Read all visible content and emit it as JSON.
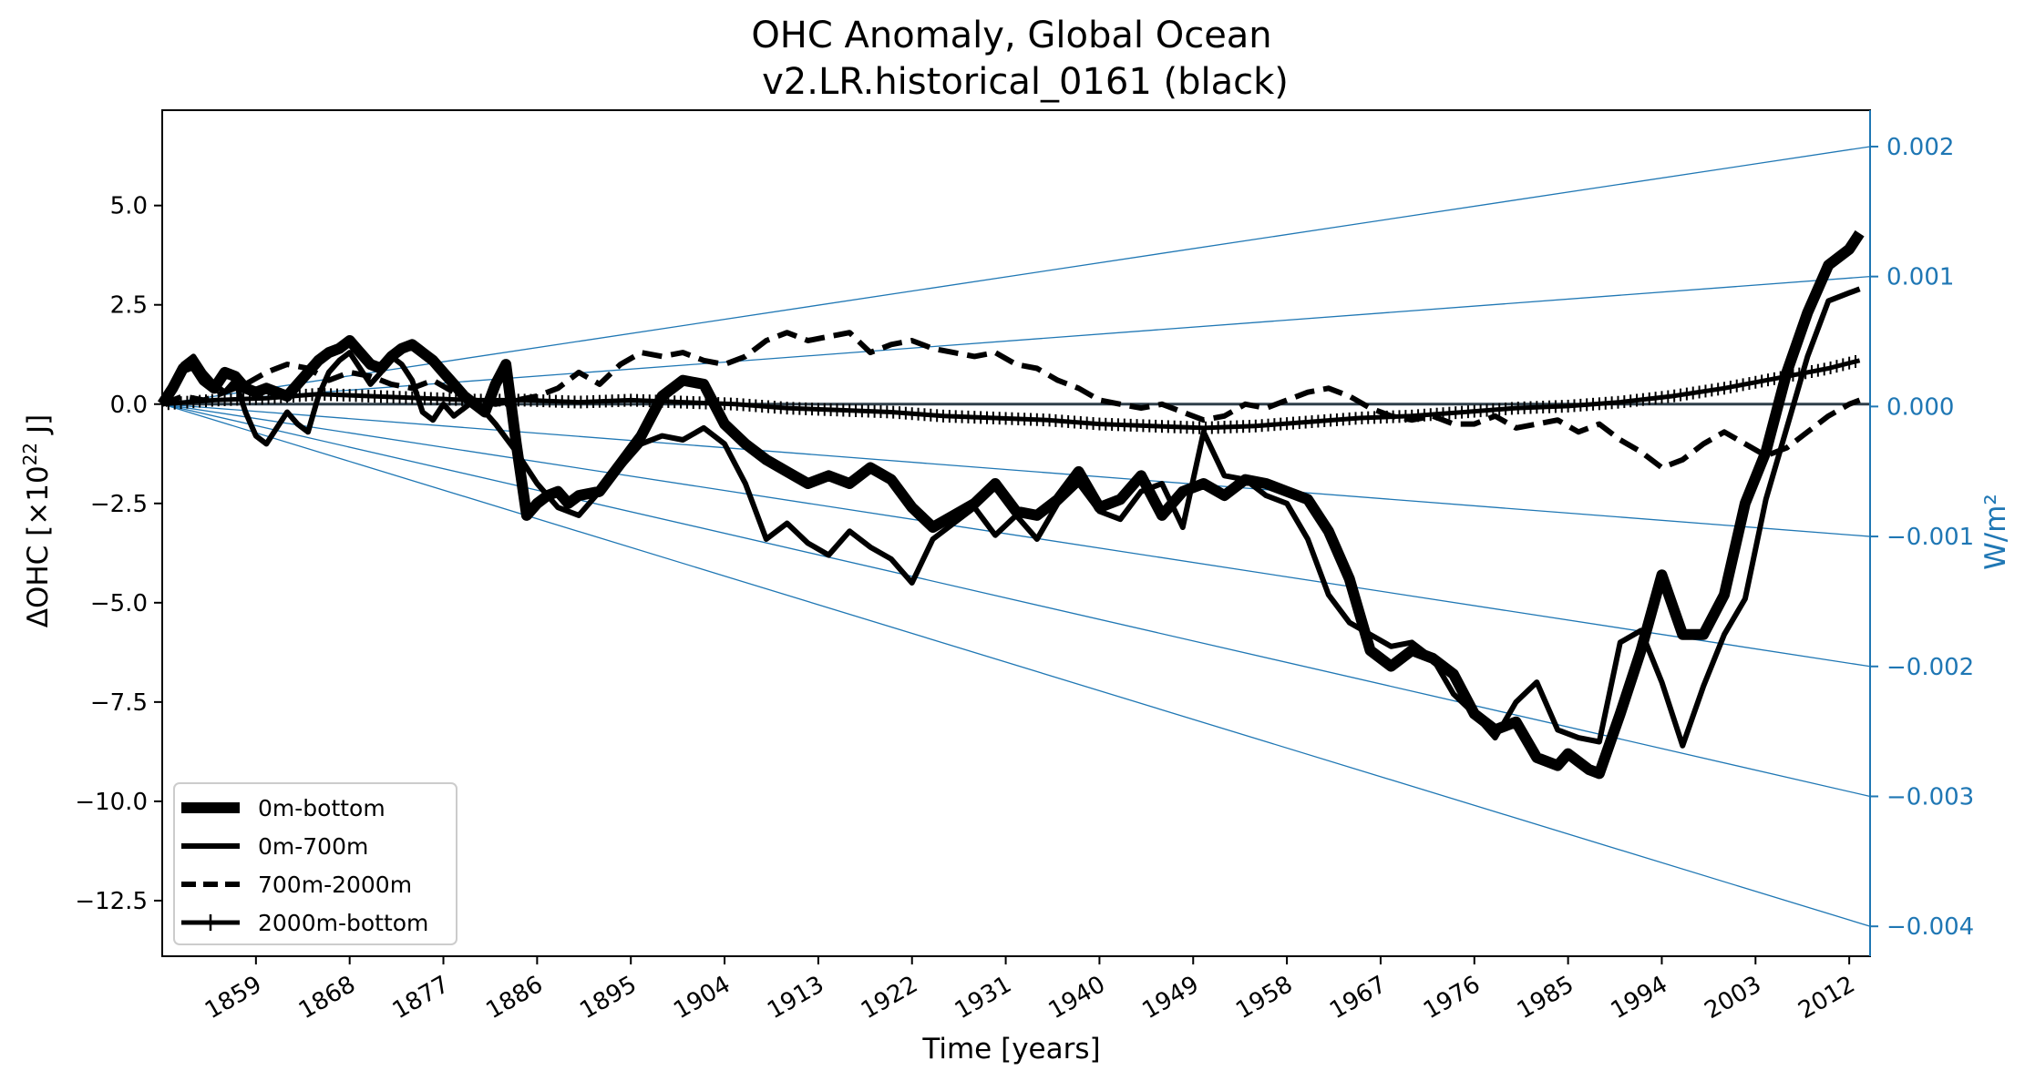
{
  "chart_data": {
    "type": "line",
    "title": "OHC Anomaly, Global Ocean",
    "subtitle": "v2.LR.historical_0161 (black)",
    "xlabel": "Time [years]",
    "ylabel": "ΔOHC [×10^22 J]",
    "ylabel_parts": {
      "main": "ΔOHC [×10",
      "sup": "22",
      "tail": " J]"
    },
    "y2label": "W/m²",
    "xlim": [
      1850,
      2014
    ],
    "ylim": [
      -13.9,
      7.4
    ],
    "y2lim": [
      -0.00423,
      0.00228
    ],
    "xticks": [
      1859,
      1868,
      1877,
      1886,
      1895,
      1904,
      1913,
      1922,
      1931,
      1940,
      1949,
      1958,
      1967,
      1976,
      1985,
      1994,
      2003,
      2012
    ],
    "yticks": [
      5.0,
      2.5,
      0.0,
      -2.5,
      -5.0,
      -7.5,
      -10.0,
      -12.5
    ],
    "ytick_labels": [
      "5.0",
      "2.5",
      "0.0",
      "−2.5",
      "−5.0",
      "−7.5",
      "−10.0",
      "−12.5"
    ],
    "y2ticks": [
      0.002,
      0.001,
      0.0,
      -0.001,
      -0.002,
      -0.003,
      -0.004
    ],
    "y2tick_labels": [
      "0.002",
      "0.001",
      "0.000",
      "−0.001",
      "−0.002",
      "−0.003",
      "−0.004"
    ],
    "reference_lines_wm2": [
      0.002,
      0.001,
      -0.001,
      -0.002,
      -0.003,
      -0.004
    ],
    "zero_line": 0.0,
    "legend_position": "lower-left",
    "colors": {
      "data": "#000000",
      "reference": "#1f77b4",
      "zero": "#2f3f4a",
      "frame": "#000000"
    },
    "series": [
      {
        "name": "0m-bottom",
        "style": "thick-solid",
        "x": [
          1850,
          1851,
          1852,
          1853,
          1854,
          1855,
          1856,
          1857,
          1858,
          1859,
          1860,
          1861,
          1862,
          1863,
          1864,
          1865,
          1866,
          1867,
          1868,
          1869,
          1870,
          1871,
          1872,
          1873,
          1874,
          1875,
          1876,
          1877,
          1878,
          1879,
          1880,
          1881,
          1882,
          1883,
          1884,
          1885,
          1886,
          1887,
          1888,
          1889,
          1890,
          1892,
          1894,
          1896,
          1898,
          1900,
          1902,
          1904,
          1906,
          1908,
          1910,
          1912,
          1914,
          1916,
          1918,
          1920,
          1922,
          1924,
          1926,
          1928,
          1930,
          1932,
          1934,
          1936,
          1938,
          1940,
          1942,
          1944,
          1946,
          1948,
          1950,
          1952,
          1954,
          1956,
          1958,
          1960,
          1962,
          1964,
          1966,
          1968,
          1970,
          1972,
          1974,
          1976,
          1978,
          1980,
          1982,
          1984,
          1985,
          1986,
          1987,
          1988,
          1990,
          1992,
          1994,
          1996,
          1998,
          2000,
          2002,
          2004,
          2006,
          2008,
          2010,
          2012,
          2013
        ],
        "values": [
          0.0,
          0.4,
          0.9,
          1.0,
          0.6,
          0.4,
          0.8,
          0.7,
          0.4,
          0.3,
          0.4,
          0.3,
          0.2,
          0.5,
          0.8,
          1.1,
          1.3,
          1.4,
          1.6,
          1.3,
          1.0,
          0.9,
          1.2,
          1.4,
          1.5,
          1.3,
          1.1,
          0.8,
          0.5,
          0.2,
          0.0,
          -0.2,
          0.5,
          1.0,
          -1.0,
          -2.8,
          -2.5,
          -2.3,
          -2.2,
          -2.5,
          -2.3,
          -2.2,
          -1.5,
          -0.8,
          0.2,
          0.6,
          0.5,
          -0.5,
          -1.0,
          -1.4,
          -1.7,
          -2.0,
          -1.8,
          -2.0,
          -1.6,
          -1.9,
          -2.6,
          -3.1,
          -2.8,
          -2.5,
          -2.0,
          -2.7,
          -2.8,
          -2.4,
          -1.7,
          -2.6,
          -2.4,
          -1.8,
          -2.8,
          -2.2,
          -2.0,
          -2.3,
          -1.9,
          -2.0,
          -2.2,
          -2.4,
          -3.2,
          -4.4,
          -6.2,
          -6.6,
          -6.2,
          -6.4,
          -6.8,
          -7.8,
          -8.2,
          -8.0,
          -8.9,
          -9.1,
          -8.8,
          -9.0,
          -9.2,
          -9.3,
          -7.8,
          -6.2,
          -4.3,
          -5.8,
          -5.8,
          -4.8,
          -2.5,
          -1.2,
          0.8,
          2.3,
          3.5,
          3.9,
          4.3
        ]
      },
      {
        "name": "0m-700m",
        "style": "solid",
        "x": [
          1850,
          1851,
          1852,
          1853,
          1854,
          1855,
          1856,
          1857,
          1858,
          1859,
          1860,
          1861,
          1862,
          1863,
          1864,
          1865,
          1866,
          1867,
          1868,
          1869,
          1870,
          1871,
          1872,
          1873,
          1874,
          1875,
          1876,
          1877,
          1878,
          1879,
          1880,
          1882,
          1884,
          1886,
          1888,
          1890,
          1892,
          1894,
          1896,
          1898,
          1900,
          1902,
          1904,
          1906,
          1908,
          1910,
          1912,
          1914,
          1916,
          1918,
          1920,
          1922,
          1924,
          1926,
          1928,
          1930,
          1932,
          1934,
          1936,
          1938,
          1940,
          1942,
          1944,
          1946,
          1948,
          1950,
          1952,
          1954,
          1956,
          1958,
          1960,
          1962,
          1964,
          1966,
          1968,
          1970,
          1972,
          1974,
          1976,
          1978,
          1980,
          1982,
          1984,
          1986,
          1988,
          1990,
          1992,
          1994,
          1996,
          1998,
          2000,
          2002,
          2004,
          2006,
          2008,
          2010,
          2012,
          2013
        ],
        "values": [
          0.0,
          0.5,
          1.0,
          1.2,
          0.8,
          0.5,
          0.3,
          0.6,
          -0.2,
          -0.8,
          -1.0,
          -0.6,
          -0.2,
          -0.5,
          -0.7,
          0.2,
          0.8,
          1.1,
          1.3,
          0.9,
          0.5,
          0.8,
          1.2,
          1.0,
          0.6,
          -0.2,
          -0.4,
          0.0,
          -0.3,
          -0.1,
          0.1,
          -0.5,
          -1.2,
          -2.0,
          -2.6,
          -2.8,
          -2.2,
          -1.6,
          -1.0,
          -0.8,
          -0.9,
          -0.6,
          -1.0,
          -2.0,
          -3.4,
          -3.0,
          -3.5,
          -3.8,
          -3.2,
          -3.6,
          -3.9,
          -4.5,
          -3.4,
          -3.0,
          -2.6,
          -3.3,
          -2.8,
          -3.4,
          -2.5,
          -2.0,
          -2.7,
          -2.9,
          -2.2,
          -2.0,
          -3.1,
          -0.7,
          -1.8,
          -1.9,
          -2.3,
          -2.5,
          -3.4,
          -4.8,
          -5.5,
          -5.8,
          -6.1,
          -6.0,
          -6.4,
          -7.3,
          -7.8,
          -8.4,
          -7.5,
          -7.0,
          -8.2,
          -8.4,
          -8.5,
          -6.0,
          -5.7,
          -7.0,
          -8.6,
          -7.1,
          -5.8,
          -4.9,
          -2.4,
          -0.6,
          1.2,
          2.6,
          2.8,
          2.9
        ]
      },
      {
        "name": "700m-2000m",
        "style": "dashed",
        "x": [
          1850,
          1852,
          1854,
          1856,
          1858,
          1860,
          1862,
          1864,
          1866,
          1868,
          1870,
          1872,
          1874,
          1876,
          1878,
          1880,
          1882,
          1884,
          1886,
          1888,
          1890,
          1892,
          1894,
          1896,
          1898,
          1900,
          1902,
          1904,
          1906,
          1908,
          1910,
          1912,
          1914,
          1916,
          1918,
          1920,
          1922,
          1924,
          1926,
          1928,
          1930,
          1932,
          1934,
          1936,
          1938,
          1940,
          1942,
          1944,
          1946,
          1948,
          1950,
          1952,
          1954,
          1956,
          1958,
          1960,
          1962,
          1964,
          1966,
          1968,
          1970,
          1972,
          1974,
          1976,
          1978,
          1980,
          1982,
          1984,
          1986,
          1988,
          1990,
          1992,
          1994,
          1996,
          1998,
          2000,
          2002,
          2004,
          2006,
          2008,
          2010,
          2012,
          2013
        ],
        "values": [
          0.0,
          0.2,
          0.1,
          0.3,
          0.5,
          0.8,
          1.0,
          0.9,
          0.6,
          0.8,
          0.7,
          0.5,
          0.4,
          0.6,
          0.3,
          0.1,
          0.0,
          0.1,
          0.2,
          0.4,
          0.8,
          0.5,
          1.0,
          1.3,
          1.2,
          1.3,
          1.1,
          1.0,
          1.2,
          1.6,
          1.8,
          1.6,
          1.7,
          1.8,
          1.3,
          1.5,
          1.6,
          1.4,
          1.3,
          1.2,
          1.3,
          1.0,
          0.9,
          0.6,
          0.4,
          0.1,
          0.0,
          -0.1,
          0.0,
          -0.2,
          -0.4,
          -0.3,
          0.0,
          -0.1,
          0.1,
          0.3,
          0.4,
          0.2,
          -0.1,
          -0.3,
          -0.4,
          -0.3,
          -0.5,
          -0.5,
          -0.3,
          -0.6,
          -0.5,
          -0.4,
          -0.7,
          -0.5,
          -0.9,
          -1.2,
          -1.6,
          -1.4,
          -1.0,
          -0.7,
          -1.0,
          -1.3,
          -1.1,
          -0.7,
          -0.3,
          0.0,
          0.1
        ]
      },
      {
        "name": "2000m-bottom",
        "style": "solid-plus",
        "x": [
          1850,
          1855,
          1860,
          1865,
          1870,
          1875,
          1880,
          1885,
          1890,
          1895,
          1900,
          1905,
          1910,
          1915,
          1920,
          1925,
          1930,
          1935,
          1940,
          1945,
          1950,
          1955,
          1960,
          1965,
          1970,
          1975,
          1980,
          1985,
          1990,
          1995,
          2000,
          2005,
          2010,
          2013
        ],
        "values": [
          0.0,
          0.1,
          0.15,
          0.25,
          0.2,
          0.15,
          0.1,
          0.1,
          0.05,
          0.1,
          0.05,
          0.0,
          -0.1,
          -0.15,
          -0.2,
          -0.3,
          -0.35,
          -0.4,
          -0.5,
          -0.55,
          -0.6,
          -0.55,
          -0.45,
          -0.35,
          -0.3,
          -0.2,
          -0.1,
          -0.05,
          0.05,
          0.2,
          0.4,
          0.65,
          0.9,
          1.1
        ]
      }
    ]
  }
}
